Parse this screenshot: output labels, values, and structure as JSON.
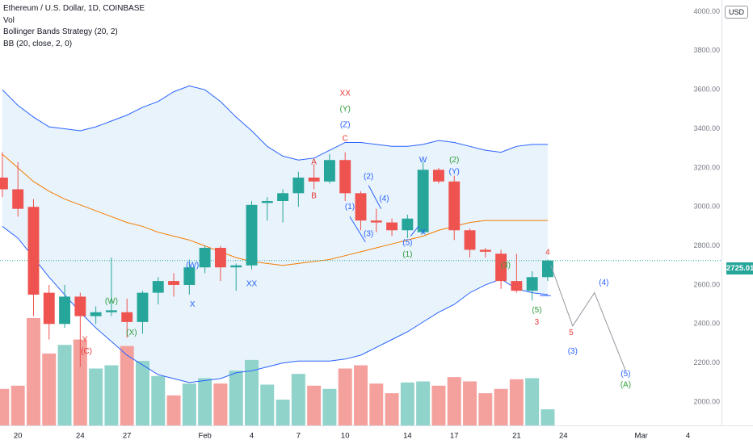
{
  "header": {
    "symbol": "Ethereum / U.S. Dollar, 1D, COINBASE",
    "indicators": [
      "Vol",
      "Bollinger Bands Strategy (20, 2)",
      "BB (20, close, 2, 0)"
    ]
  },
  "currency_button": "USD",
  "last_price_label": "2725.01",
  "colors": {
    "up": "#26a69a",
    "down": "#ef5350",
    "vol_up": "#8fd3cb",
    "vol_down": "#f4a19e",
    "bb_band": "#2962ff",
    "bb_basis": "#f57c00",
    "bb_fill": "#e8f3fb",
    "label_red": "#e53935",
    "label_green": "#2e9e3b",
    "label_blue": "#2962ff",
    "projection": "#9598a1"
  },
  "chart_data": {
    "type": "candlestick",
    "title": "Ethereum / U.S. Dollar, 1D, COINBASE",
    "y_axis": {
      "ticks": [
        "2000.00",
        "2200.00",
        "2400.00",
        "2600.00",
        "2800.00",
        "3000.00",
        "3200.00",
        "3400.00",
        "3600.00",
        "3800.00",
        "4000.00"
      ],
      "range": [
        1880,
        4060
      ]
    },
    "x_axis": {
      "ticks": [
        {
          "label": "20",
          "day": 0
        },
        {
          "label": "24",
          "day": 4
        },
        {
          "label": "27",
          "day": 7
        },
        {
          "label": "Feb",
          "day": 12
        },
        {
          "label": "4",
          "day": 15
        },
        {
          "label": "7",
          "day": 18
        },
        {
          "label": "10",
          "day": 21
        },
        {
          "label": "14",
          "day": 25
        },
        {
          "label": "17",
          "day": 28
        },
        {
          "label": "21",
          "day": 32
        },
        {
          "label": "24",
          "day": 35
        },
        {
          "label": "Mar",
          "day": 40
        },
        {
          "label": "4",
          "day": 43
        }
      ],
      "range": [
        -1.15,
        45.15
      ]
    },
    "candles": [
      {
        "day": -1,
        "o": 3150,
        "h": 3280,
        "l": 3050,
        "c": 3090,
        "v": 0.34
      },
      {
        "day": 0,
        "o": 3090,
        "h": 3230,
        "l": 2950,
        "c": 2990,
        "v": 0.37
      },
      {
        "day": 1,
        "o": 3000,
        "h": 3040,
        "l": 2440,
        "c": 2550,
        "v": 1.0
      },
      {
        "day": 2,
        "o": 2560,
        "h": 2600,
        "l": 2320,
        "c": 2400,
        "v": 0.67
      },
      {
        "day": 3,
        "o": 2400,
        "h": 2600,
        "l": 2380,
        "c": 2540,
        "v": 0.75
      },
      {
        "day": 4,
        "o": 2540,
        "h": 2560,
        "l": 2180,
        "c": 2440,
        "v": 0.8
      },
      {
        "day": 5,
        "o": 2440,
        "h": 2490,
        "l": 2400,
        "c": 2460,
        "v": 0.53
      },
      {
        "day": 6,
        "o": 2460,
        "h": 2740,
        "l": 2440,
        "c": 2470,
        "v": 0.56
      },
      {
        "day": 7,
        "o": 2460,
        "h": 2530,
        "l": 2330,
        "c": 2410,
        "v": 0.74
      },
      {
        "day": 8,
        "o": 2410,
        "h": 2570,
        "l": 2350,
        "c": 2560,
        "v": 0.6
      },
      {
        "day": 9,
        "o": 2560,
        "h": 2640,
        "l": 2500,
        "c": 2620,
        "v": 0.46
      },
      {
        "day": 10,
        "o": 2620,
        "h": 2660,
        "l": 2540,
        "c": 2600,
        "v": 0.28
      },
      {
        "day": 11,
        "o": 2600,
        "h": 2730,
        "l": 2550,
        "c": 2690,
        "v": 0.39
      },
      {
        "day": 12,
        "o": 2690,
        "h": 2800,
        "l": 2660,
        "c": 2790,
        "v": 0.44
      },
      {
        "day": 13,
        "o": 2790,
        "h": 2800,
        "l": 2620,
        "c": 2690,
        "v": 0.39
      },
      {
        "day": 14,
        "o": 2690,
        "h": 2710,
        "l": 2570,
        "c": 2700,
        "v": 0.51
      },
      {
        "day": 15,
        "o": 2700,
        "h": 3030,
        "l": 2680,
        "c": 3010,
        "v": 0.61
      },
      {
        "day": 16,
        "o": 3020,
        "h": 3050,
        "l": 2930,
        "c": 3030,
        "v": 0.38
      },
      {
        "day": 17,
        "o": 3030,
        "h": 3090,
        "l": 2920,
        "c": 3070,
        "v": 0.24
      },
      {
        "day": 18,
        "o": 3070,
        "h": 3180,
        "l": 3000,
        "c": 3150,
        "v": 0.48
      },
      {
        "day": 19,
        "o": 3150,
        "h": 3220,
        "l": 3090,
        "c": 3130,
        "v": 0.37
      },
      {
        "day": 20,
        "o": 3130,
        "h": 3270,
        "l": 3120,
        "c": 3240,
        "v": 0.34
      },
      {
        "day": 21,
        "o": 3240,
        "h": 3280,
        "l": 3030,
        "c": 3070,
        "v": 0.53
      },
      {
        "day": 22,
        "o": 3070,
        "h": 3080,
        "l": 2880,
        "c": 2930,
        "v": 0.56
      },
      {
        "day": 23,
        "o": 2930,
        "h": 2990,
        "l": 2870,
        "c": 2920,
        "v": 0.39
      },
      {
        "day": 24,
        "o": 2920,
        "h": 2940,
        "l": 2850,
        "c": 2880,
        "v": 0.3
      },
      {
        "day": 25,
        "o": 2880,
        "h": 2960,
        "l": 2840,
        "c": 2940,
        "v": 0.4
      },
      {
        "day": 26,
        "o": 2870,
        "h": 3230,
        "l": 2860,
        "c": 3190,
        "v": 0.41
      },
      {
        "day": 27,
        "o": 3190,
        "h": 3200,
        "l": 3120,
        "c": 3130,
        "v": 0.37
      },
      {
        "day": 28,
        "o": 3130,
        "h": 3160,
        "l": 2830,
        "c": 2880,
        "v": 0.45
      },
      {
        "day": 29,
        "o": 2880,
        "h": 2890,
        "l": 2740,
        "c": 2780,
        "v": 0.41
      },
      {
        "day": 30,
        "o": 2780,
        "h": 2790,
        "l": 2740,
        "c": 2770,
        "v": 0.3
      },
      {
        "day": 31,
        "o": 2760,
        "h": 2780,
        "l": 2580,
        "c": 2620,
        "v": 0.34
      },
      {
        "day": 32,
        "o": 2620,
        "h": 2760,
        "l": 2560,
        "c": 2570,
        "v": 0.43
      },
      {
        "day": 33,
        "o": 2570,
        "h": 2670,
        "l": 2520,
        "c": 2640,
        "v": 0.44
      },
      {
        "day": 34,
        "o": 2640,
        "h": 2730,
        "l": 2620,
        "c": 2725,
        "v": 0.15
      }
    ],
    "bb_upper": [
      [
        -1,
        3600
      ],
      [
        0,
        3520
      ],
      [
        1,
        3460
      ],
      [
        2,
        3410
      ],
      [
        3,
        3400
      ],
      [
        4,
        3390
      ],
      [
        5,
        3410
      ],
      [
        6,
        3440
      ],
      [
        7,
        3470
      ],
      [
        8,
        3510
      ],
      [
        9,
        3540
      ],
      [
        10,
        3590
      ],
      [
        11,
        3620
      ],
      [
        12,
        3600
      ],
      [
        13,
        3540
      ],
      [
        14,
        3460
      ],
      [
        15,
        3390
      ],
      [
        16,
        3310
      ],
      [
        17,
        3260
      ],
      [
        18,
        3240
      ],
      [
        19,
        3250
      ],
      [
        20,
        3290
      ],
      [
        21,
        3330
      ],
      [
        22,
        3330
      ],
      [
        23,
        3320
      ],
      [
        24,
        3310
      ],
      [
        25,
        3310
      ],
      [
        26,
        3320
      ],
      [
        27,
        3340
      ],
      [
        28,
        3330
      ],
      [
        29,
        3310
      ],
      [
        30,
        3290
      ],
      [
        31,
        3280
      ],
      [
        32,
        3310
      ],
      [
        33,
        3320
      ],
      [
        34,
        3320
      ]
    ],
    "bb_basis": [
      [
        -1,
        3270
      ],
      [
        0,
        3200
      ],
      [
        1,
        3130
      ],
      [
        2,
        3080
      ],
      [
        3,
        3040
      ],
      [
        4,
        3010
      ],
      [
        5,
        2980
      ],
      [
        6,
        2950
      ],
      [
        7,
        2920
      ],
      [
        8,
        2900
      ],
      [
        9,
        2870
      ],
      [
        10,
        2850
      ],
      [
        11,
        2830
      ],
      [
        12,
        2800
      ],
      [
        13,
        2770
      ],
      [
        14,
        2740
      ],
      [
        15,
        2720
      ],
      [
        16,
        2710
      ],
      [
        17,
        2700
      ],
      [
        18,
        2710
      ],
      [
        19,
        2720
      ],
      [
        20,
        2730
      ],
      [
        21,
        2750
      ],
      [
        22,
        2770
      ],
      [
        23,
        2790
      ],
      [
        24,
        2810
      ],
      [
        25,
        2830
      ],
      [
        26,
        2850
      ],
      [
        27,
        2880
      ],
      [
        28,
        2900
      ],
      [
        29,
        2920
      ],
      [
        30,
        2930
      ],
      [
        31,
        2930
      ],
      [
        32,
        2930
      ],
      [
        33,
        2930
      ],
      [
        34,
        2930
      ]
    ],
    "bb_lower": [
      [
        -1,
        2900
      ],
      [
        0,
        2840
      ],
      [
        1,
        2740
      ],
      [
        2,
        2640
      ],
      [
        3,
        2550
      ],
      [
        4,
        2460
      ],
      [
        5,
        2380
      ],
      [
        6,
        2310
      ],
      [
        7,
        2240
      ],
      [
        8,
        2190
      ],
      [
        9,
        2140
      ],
      [
        10,
        2120
      ],
      [
        11,
        2100
      ],
      [
        12,
        2110
      ],
      [
        13,
        2120
      ],
      [
        14,
        2150
      ],
      [
        15,
        2160
      ],
      [
        16,
        2180
      ],
      [
        17,
        2200
      ],
      [
        18,
        2210
      ],
      [
        19,
        2210
      ],
      [
        20,
        2210
      ],
      [
        21,
        2220
      ],
      [
        22,
        2240
      ],
      [
        23,
        2280
      ],
      [
        24,
        2320
      ],
      [
        25,
        2360
      ],
      [
        26,
        2410
      ],
      [
        27,
        2460
      ],
      [
        28,
        2500
      ],
      [
        29,
        2560
      ],
      [
        30,
        2600
      ],
      [
        31,
        2630
      ],
      [
        32,
        2580
      ],
      [
        33,
        2560
      ],
      [
        34,
        2550
      ]
    ],
    "last_price": 2725.01,
    "wave_labels": [
      {
        "text": "XX",
        "day": 21.0,
        "price": 3580,
        "color": "red"
      },
      {
        "text": "(Y)",
        "day": 21.0,
        "price": 3500,
        "color": "green"
      },
      {
        "text": "(Z)",
        "day": 21.0,
        "price": 3420,
        "color": "blue"
      },
      {
        "text": "C",
        "day": 21.0,
        "price": 3350,
        "color": "red"
      },
      {
        "text": "A",
        "day": 19.0,
        "price": 3230,
        "color": "red"
      },
      {
        "text": "B",
        "day": 19.0,
        "price": 3055,
        "color": "red"
      },
      {
        "text": "W",
        "day": 26.0,
        "price": 3240,
        "color": "blue"
      },
      {
        "text": "(2)",
        "day": 28.0,
        "price": 3240,
        "color": "green"
      },
      {
        "text": "(Y)",
        "day": 28.0,
        "price": 3180,
        "color": "blue"
      },
      {
        "text": "(2)",
        "day": 22.5,
        "price": 3155,
        "color": "blue"
      },
      {
        "text": "(4)",
        "day": 23.5,
        "price": 3040,
        "color": "blue"
      },
      {
        "text": "(1)",
        "day": 21.3,
        "price": 3000,
        "color": "blue"
      },
      {
        "text": "(3)",
        "day": 22.5,
        "price": 2860,
        "color": "blue"
      },
      {
        "text": "X",
        "day": 26.0,
        "price": 2870,
        "color": "blue"
      },
      {
        "text": "(5)",
        "day": 25.0,
        "price": 2815,
        "color": "blue"
      },
      {
        "text": "(1)",
        "day": 25.0,
        "price": 2755,
        "color": "green"
      },
      {
        "text": "(W)",
        "day": 11.2,
        "price": 2700,
        "color": "blue"
      },
      {
        "text": "XX",
        "day": 15.0,
        "price": 2605,
        "color": "blue"
      },
      {
        "text": "X",
        "day": 11.2,
        "price": 2500,
        "color": "blue"
      },
      {
        "text": "(W)",
        "day": 6.0,
        "price": 2515,
        "color": "green"
      },
      {
        "text": "(X)",
        "day": 7.3,
        "price": 2355,
        "color": "green"
      },
      {
        "text": "Y",
        "day": 4.3,
        "price": 2320,
        "color": "red"
      },
      {
        "text": "(C)",
        "day": 4.4,
        "price": 2260,
        "color": "red"
      },
      {
        "text": "(3)",
        "day": 31.3,
        "price": 2700,
        "color": "green"
      },
      {
        "text": "4",
        "day": 34.0,
        "price": 2765,
        "color": "red"
      },
      {
        "text": "(5)",
        "day": 33.3,
        "price": 2470,
        "color": "green"
      },
      {
        "text": "3",
        "day": 33.3,
        "price": 2408,
        "color": "red"
      },
      {
        "text": "5",
        "day": 35.5,
        "price": 2355,
        "color": "red"
      },
      {
        "text": "(4)",
        "day": 37.6,
        "price": 2610,
        "color": "blue"
      },
      {
        "text": "(3)",
        "day": 35.6,
        "price": 2260,
        "color": "blue"
      },
      {
        "text": "(5)",
        "day": 39.0,
        "price": 2143,
        "color": "blue"
      },
      {
        "text": "(A)",
        "day": 39.0,
        "price": 2087,
        "color": "green"
      }
    ],
    "projection_path": [
      [
        34.2,
        2700
      ],
      [
        35.6,
        2390
      ],
      [
        37.0,
        2560
      ],
      [
        39.0,
        2160
      ]
    ],
    "projection_stub": [
      [
        33.5,
        2545
      ],
      [
        34.2,
        2545
      ]
    ],
    "wave_lines": [
      [
        [
          21.3,
          2950
        ],
        [
          22.3,
          2820
        ]
      ],
      [
        [
          22.5,
          3110
        ],
        [
          23.3,
          2990
        ]
      ],
      [
        [
          25.2,
          2850
        ],
        [
          25.7,
          2900
        ]
      ]
    ]
  }
}
